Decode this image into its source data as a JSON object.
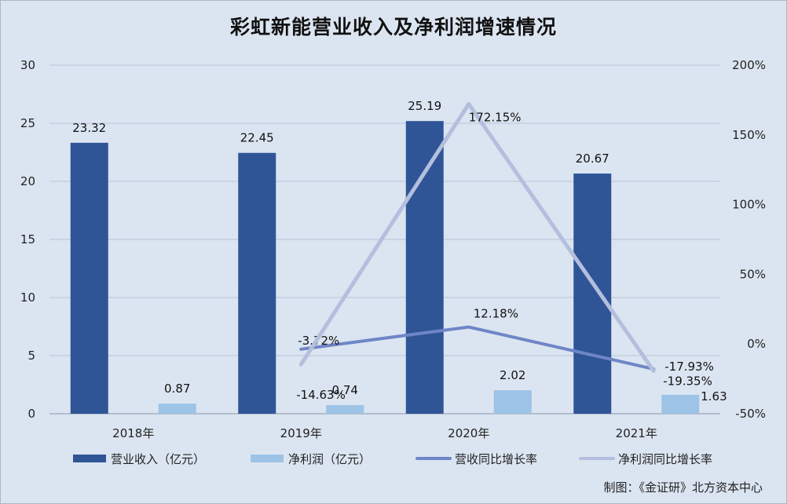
{
  "chart_data": {
    "type": "bar",
    "title": "彩虹新能营业收入及净利润增速情况",
    "categories": [
      "2018年",
      "2019年",
      "2020年",
      "2021年"
    ],
    "y_left": {
      "min": 0,
      "max": 30,
      "ticks": [
        "0",
        "5",
        "10",
        "15",
        "20",
        "25",
        "30"
      ]
    },
    "y_right": {
      "min": -50,
      "max": 200,
      "ticks": [
        "-50%",
        "0%",
        "50%",
        "100%",
        "150%",
        "200%"
      ]
    },
    "grid": true,
    "legend_position": "bottom",
    "series": [
      {
        "name": "营业收入（亿元）",
        "kind": "bar",
        "axis": "left",
        "color": "#2f5597",
        "values": [
          23.32,
          22.45,
          25.19,
          20.67
        ],
        "labels": [
          "23.32",
          "22.45",
          "25.19",
          "20.67"
        ]
      },
      {
        "name": "净利润（亿元）",
        "kind": "bar",
        "axis": "left",
        "color": "#9dc3e6",
        "values": [
          0.87,
          0.74,
          2.02,
          1.63
        ],
        "labels": [
          "0.87",
          "0.74",
          "2.02",
          "1.63"
        ]
      },
      {
        "name": "营收同比增长率",
        "kind": "line",
        "axis": "right",
        "color": "#6f86c6",
        "values": [
          null,
          -3.72,
          12.18,
          -17.93
        ],
        "labels": [
          "",
          "-3.72%",
          "12.18%",
          "-17.93%"
        ]
      },
      {
        "name": "净利润同比增长率",
        "kind": "line",
        "axis": "right",
        "color": "#b4bedd",
        "values": [
          null,
          -14.63,
          172.15,
          -19.35
        ],
        "labels": [
          "",
          "-14.63%",
          "172.15%",
          "-19.35%"
        ]
      }
    ]
  },
  "credit": "制图：《金证研》北方资本中心"
}
